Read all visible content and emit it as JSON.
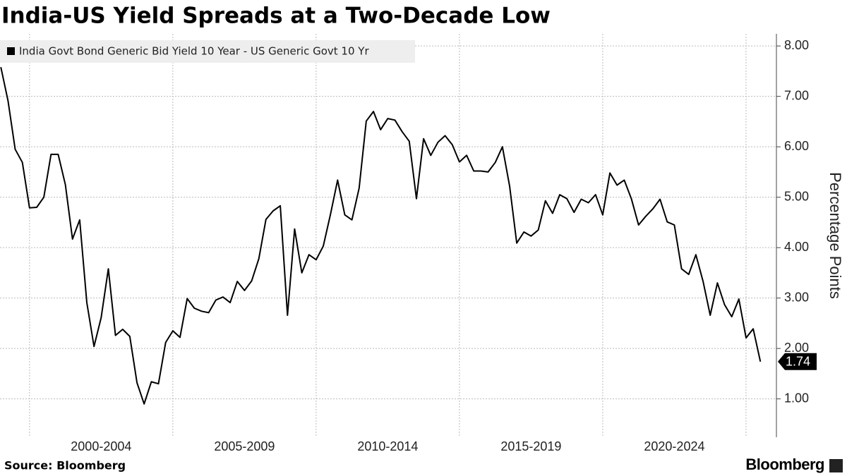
{
  "chart_data": {
    "type": "line",
    "title": "India-US Yield Spreads at a Two-Decade Low",
    "ylabel": "Percentage Points",
    "source": "Source: Bloomberg",
    "brand": "Bloomberg",
    "xlim": [
      1998.97,
      2026.06
    ],
    "ylim": [
      0.24,
      8.24
    ],
    "yticks": [
      {
        "value": 1,
        "label": "1.00"
      },
      {
        "value": 2,
        "label": "2.00"
      },
      {
        "value": 3,
        "label": "3.00"
      },
      {
        "value": 4,
        "label": "4.00"
      },
      {
        "value": 5,
        "label": "5.00"
      },
      {
        "value": 6,
        "label": "6.00"
      },
      {
        "value": 7,
        "label": "7.00"
      },
      {
        "value": 8,
        "label": "8.00"
      }
    ],
    "xticks": [
      {
        "value": 2002.5,
        "label": "2000-2004"
      },
      {
        "value": 2007.5,
        "label": "2005-2009"
      },
      {
        "value": 2012.5,
        "label": "2010-2014"
      },
      {
        "value": 2017.5,
        "label": "2015-2019"
      },
      {
        "value": 2022.5,
        "label": "2020-2024"
      }
    ],
    "xgrid": [
      2000,
      2005,
      2010,
      2015,
      2020,
      2025
    ],
    "grid": true,
    "legend": "top-left",
    "series": [
      {
        "name": "India Govt Bond Generic Bid Yield 10 Year - US Generic Govt 10 Yr",
        "color": "#000000",
        "x": [
          1999,
          1999.25,
          1999.5,
          1999.75,
          2000,
          2000.25,
          2000.5,
          2000.75,
          2001,
          2001.25,
          2001.5,
          2001.75,
          2002,
          2002.25,
          2002.5,
          2002.75,
          2003,
          2003.25,
          2003.5,
          2003.75,
          2004,
          2004.25,
          2004.5,
          2004.75,
          2005,
          2005.25,
          2005.5,
          2005.75,
          2006,
          2006.25,
          2006.5,
          2006.75,
          2007,
          2007.25,
          2007.5,
          2007.75,
          2008,
          2008.25,
          2008.5,
          2008.75,
          2009,
          2009.25,
          2009.5,
          2009.75,
          2010,
          2010.25,
          2010.5,
          2010.75,
          2011,
          2011.25,
          2011.5,
          2011.75,
          2012,
          2012.25,
          2012.5,
          2012.75,
          2013,
          2013.25,
          2013.5,
          2013.75,
          2014,
          2014.25,
          2014.5,
          2014.75,
          2015,
          2015.25,
          2015.5,
          2015.75,
          2016,
          2016.25,
          2016.5,
          2016.75,
          2017,
          2017.25,
          2017.5,
          2017.75,
          2018,
          2018.25,
          2018.5,
          2018.75,
          2019,
          2019.25,
          2019.5,
          2019.75,
          2020,
          2020.25,
          2020.5,
          2020.75,
          2021,
          2021.25,
          2021.5,
          2021.75,
          2022,
          2022.25,
          2022.5,
          2022.75,
          2023,
          2023.25,
          2023.5,
          2023.75,
          2024,
          2024.25,
          2024.5,
          2024.75,
          2025,
          2025.25,
          2025.5
        ],
        "values": [
          7.58,
          6.91,
          5.95,
          5.69,
          4.79,
          4.8,
          5.0,
          5.85,
          5.85,
          5.25,
          4.17,
          4.55,
          2.91,
          2.04,
          2.61,
          3.58,
          2.26,
          2.38,
          2.24,
          1.32,
          0.9,
          1.34,
          1.3,
          2.12,
          2.35,
          2.22,
          2.99,
          2.8,
          2.74,
          2.71,
          2.96,
          3.02,
          2.91,
          3.33,
          3.15,
          3.34,
          3.78,
          4.56,
          4.73,
          4.83,
          2.66,
          4.37,
          3.5,
          3.86,
          3.76,
          4.03,
          4.66,
          5.34,
          4.65,
          4.55,
          5.18,
          6.51,
          6.7,
          6.34,
          6.56,
          6.53,
          6.3,
          6.11,
          4.97,
          6.16,
          5.83,
          6.09,
          6.22,
          6.04,
          5.7,
          5.83,
          5.52,
          5.52,
          5.5,
          5.69,
          6.0,
          5.22,
          4.09,
          4.31,
          4.23,
          4.35,
          4.93,
          4.68,
          5.05,
          4.97,
          4.7,
          4.96,
          4.89,
          5.05,
          4.65,
          5.48,
          5.24,
          5.34,
          4.97,
          4.45,
          4.62,
          4.77,
          4.96,
          4.51,
          4.45,
          3.58,
          3.47,
          3.86,
          3.33,
          2.66,
          3.3,
          2.87,
          2.63,
          2.98,
          2.21,
          2.39,
          1.74
        ]
      }
    ]
  }
}
